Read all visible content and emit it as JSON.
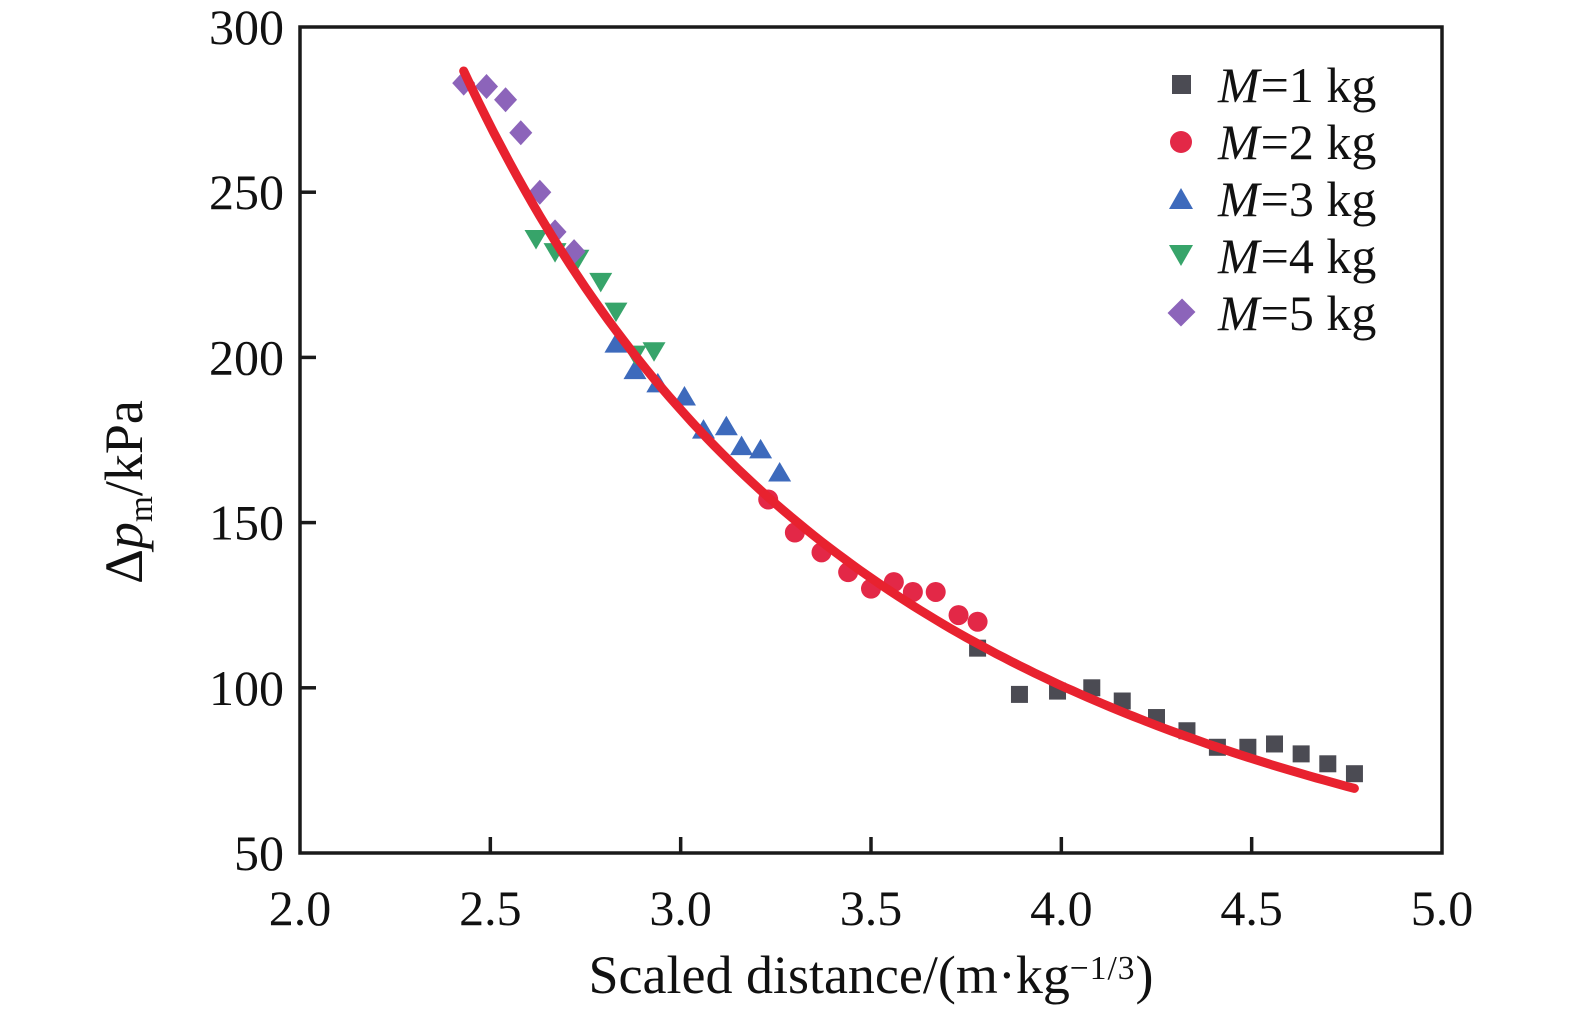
{
  "chart_data": {
    "type": "scatter",
    "title": "",
    "xlabel": "Scaled distance/(m·kg−1/3)",
    "xlabel_parts": {
      "main": "Scaled distance/(m·kg",
      "sup": "−1/3",
      "end": ")"
    },
    "ylabel": "Δpm/kPa",
    "ylabel_parts": {
      "delta": "Δ",
      "p": "p",
      "sub": "m",
      "rest": "/kPa"
    },
    "xlim": [
      2.0,
      5.0
    ],
    "ylim": [
      50,
      300
    ],
    "xticks": [
      2.0,
      2.5,
      3.0,
      3.5,
      4.0,
      4.5,
      5.0
    ],
    "xtick_labels": [
      "2.0",
      "2.5",
      "3.0",
      "3.5",
      "4.0",
      "4.5",
      "5.0"
    ],
    "yticks": [
      50,
      100,
      150,
      200,
      250,
      300
    ],
    "ytick_labels": [
      "50",
      "100",
      "150",
      "200",
      "250",
      "300"
    ],
    "grid": false,
    "legend_position": "top-right-inside",
    "axis_color": "#1a1a1a",
    "series": [
      {
        "name": "M=1 kg",
        "label_var": "M",
        "label_rest": "=1 kg",
        "marker": "square",
        "color": "#4b4b53",
        "points": [
          [
            3.78,
            112
          ],
          [
            3.89,
            98
          ],
          [
            3.99,
            99
          ],
          [
            4.08,
            100
          ],
          [
            4.16,
            96
          ],
          [
            4.25,
            91
          ],
          [
            4.33,
            87
          ],
          [
            4.41,
            82
          ],
          [
            4.49,
            82
          ],
          [
            4.56,
            83
          ],
          [
            4.63,
            80
          ],
          [
            4.7,
            77
          ],
          [
            4.77,
            74
          ]
        ]
      },
      {
        "name": "M=2 kg",
        "label_var": "M",
        "label_rest": "=2 kg",
        "marker": "circle",
        "color": "#e32847",
        "points": [
          [
            3.23,
            157
          ],
          [
            3.3,
            147
          ],
          [
            3.37,
            141
          ],
          [
            3.44,
            135
          ],
          [
            3.5,
            130
          ],
          [
            3.56,
            132
          ],
          [
            3.61,
            129
          ],
          [
            3.67,
            129
          ],
          [
            3.73,
            122
          ],
          [
            3.78,
            120
          ]
        ]
      },
      {
        "name": "M=3 kg",
        "label_var": "M",
        "label_rest": "=3 kg",
        "marker": "triangle-up",
        "color": "#3d6abc",
        "points": [
          [
            2.83,
            204
          ],
          [
            2.88,
            196
          ],
          [
            2.94,
            192
          ],
          [
            3.01,
            188
          ],
          [
            3.06,
            178
          ],
          [
            3.12,
            179
          ],
          [
            3.16,
            173
          ],
          [
            3.21,
            172
          ],
          [
            3.26,
            165
          ]
        ]
      },
      {
        "name": "M=4 kg",
        "label_var": "M",
        "label_rest": "=4 kg",
        "marker": "triangle-down",
        "color": "#37a46a",
        "points": [
          [
            2.62,
            236
          ],
          [
            2.67,
            232
          ],
          [
            2.73,
            230
          ],
          [
            2.79,
            223
          ],
          [
            2.83,
            214
          ],
          [
            2.88,
            201
          ],
          [
            2.93,
            202
          ]
        ]
      },
      {
        "name": "M=5 kg",
        "label_var": "M",
        "label_rest": "=5 kg",
        "marker": "diamond",
        "color": "#8c64ba",
        "points": [
          [
            2.43,
            283
          ],
          [
            2.49,
            282
          ],
          [
            2.54,
            278
          ],
          [
            2.58,
            268
          ],
          [
            2.63,
            250
          ],
          [
            2.67,
            238
          ],
          [
            2.72,
            232
          ]
        ]
      }
    ],
    "fit_curve": {
      "type": "power",
      "equation": "y = 1850 * x^-2.1",
      "a": 1850,
      "b": -2.1,
      "x_start": 2.43,
      "x_end": 4.78,
      "color": "#e8222f",
      "stroke_width": 9
    }
  }
}
